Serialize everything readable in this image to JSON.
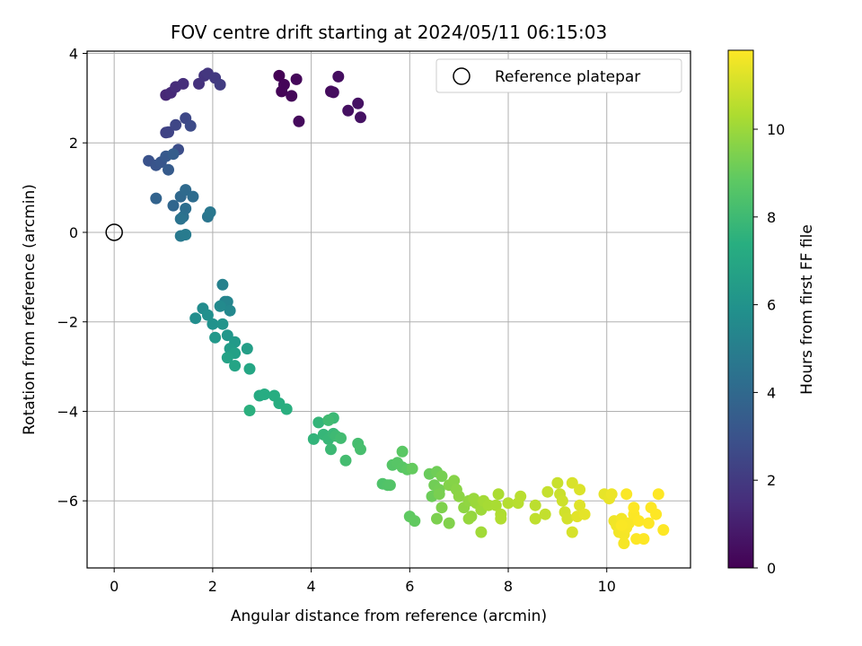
{
  "chart_data": {
    "type": "scatter",
    "title": "FOV centre drift starting at 2024/05/11 06:15:03",
    "xlabel": "Angular distance from reference (arcmin)",
    "ylabel": "Rotation from reference (arcmin)",
    "xlim": [
      -0.55,
      11.7
    ],
    "ylim": [
      -7.5,
      4.05
    ],
    "xticks": [
      0,
      2,
      4,
      6,
      8,
      10
    ],
    "yticks": [
      4,
      2,
      0,
      -2,
      -4,
      -6
    ],
    "xtick_labels": [
      "0",
      "2",
      "4",
      "6",
      "8",
      "10"
    ],
    "ytick_labels": [
      "4",
      "2",
      "0",
      "−2",
      "−4",
      "−6"
    ],
    "grid": true,
    "colormap": "viridis",
    "colorbar": {
      "label": "Hours from first FF file",
      "range": [
        0,
        11.8
      ],
      "ticks": [
        0,
        2,
        4,
        6,
        8,
        10
      ],
      "tick_labels": [
        "0",
        "2",
        "4",
        "6",
        "8",
        "10"
      ]
    },
    "reference": {
      "name": "Reference platepar",
      "x": 0,
      "y": 0
    },
    "legend": {
      "placement": "top-right",
      "entries": [
        "Reference platepar"
      ]
    },
    "points": [
      [
        3.35,
        3.5,
        0.05
      ],
      [
        3.4,
        3.15,
        0.1
      ],
      [
        3.45,
        3.3,
        0.15
      ],
      [
        3.6,
        3.05,
        0.2
      ],
      [
        3.7,
        3.42,
        0.25
      ],
      [
        3.75,
        2.48,
        0.3
      ],
      [
        4.4,
        3.15,
        0.35
      ],
      [
        4.45,
        3.13,
        0.4
      ],
      [
        4.55,
        3.48,
        0.45
      ],
      [
        4.75,
        2.72,
        0.5
      ],
      [
        4.95,
        2.88,
        0.55
      ],
      [
        5.0,
        2.57,
        0.6
      ],
      [
        1.05,
        3.07,
        1.3
      ],
      [
        1.15,
        3.12,
        1.4
      ],
      [
        1.25,
        3.25,
        1.5
      ],
      [
        1.4,
        3.32,
        1.6
      ],
      [
        1.72,
        3.32,
        1.7
      ],
      [
        1.83,
        3.5,
        1.8
      ],
      [
        1.9,
        3.55,
        1.9
      ],
      [
        2.05,
        3.45,
        2.0
      ],
      [
        2.15,
        3.3,
        2.1
      ],
      [
        1.05,
        2.23,
        2.3
      ],
      [
        1.1,
        2.24,
        2.4
      ],
      [
        1.25,
        2.4,
        2.5
      ],
      [
        1.45,
        2.55,
        2.6
      ],
      [
        1.55,
        2.38,
        2.7
      ],
      [
        1.3,
        1.85,
        2.8
      ],
      [
        0.7,
        1.6,
        3.0
      ],
      [
        0.85,
        1.5,
        3.1
      ],
      [
        0.95,
        1.57,
        3.2
      ],
      [
        1.05,
        1.7,
        3.3
      ],
      [
        1.1,
        1.4,
        3.4
      ],
      [
        1.2,
        1.75,
        3.5
      ],
      [
        0.85,
        0.76,
        3.8
      ],
      [
        1.2,
        0.6,
        3.9
      ],
      [
        1.35,
        0.8,
        4.0
      ],
      [
        1.45,
        0.95,
        4.1
      ],
      [
        1.6,
        0.8,
        4.2
      ],
      [
        1.45,
        0.53,
        4.3
      ],
      [
        1.4,
        0.35,
        4.4
      ],
      [
        1.35,
        0.3,
        4.5
      ],
      [
        1.9,
        0.35,
        4.6
      ],
      [
        1.95,
        0.45,
        4.7
      ],
      [
        1.35,
        -0.08,
        4.8
      ],
      [
        1.45,
        -0.05,
        4.9
      ],
      [
        2.2,
        -1.17,
        5.2
      ],
      [
        2.25,
        -1.55,
        5.3
      ],
      [
        2.3,
        -1.55,
        5.4
      ],
      [
        2.35,
        -1.75,
        5.5
      ],
      [
        2.15,
        -1.65,
        5.6
      ],
      [
        1.8,
        -1.7,
        5.7
      ],
      [
        1.65,
        -1.92,
        5.8
      ],
      [
        1.9,
        -1.85,
        5.9
      ],
      [
        2.0,
        -2.05,
        6.0
      ],
      [
        2.2,
        -2.05,
        6.1
      ],
      [
        2.3,
        -2.3,
        6.2
      ],
      [
        2.05,
        -2.35,
        6.3
      ],
      [
        2.45,
        -2.45,
        6.4
      ],
      [
        2.35,
        -2.6,
        6.5
      ],
      [
        2.7,
        -2.6,
        6.6
      ],
      [
        2.45,
        -2.7,
        6.7
      ],
      [
        2.3,
        -2.8,
        6.8
      ],
      [
        2.45,
        -2.98,
        6.9
      ],
      [
        2.75,
        -3.05,
        7.0
      ],
      [
        2.95,
        -3.65,
        7.2
      ],
      [
        3.05,
        -3.62,
        7.3
      ],
      [
        3.25,
        -3.65,
        7.35
      ],
      [
        3.35,
        -3.82,
        7.4
      ],
      [
        3.5,
        -3.95,
        7.45
      ],
      [
        2.75,
        -3.98,
        7.5
      ],
      [
        4.05,
        -4.62,
        7.7
      ],
      [
        4.15,
        -4.25,
        7.75
      ],
      [
        4.25,
        -4.52,
        7.8
      ],
      [
        4.35,
        -4.62,
        7.85
      ],
      [
        4.45,
        -4.5,
        7.9
      ],
      [
        4.45,
        -4.15,
        7.95
      ],
      [
        4.4,
        -4.85,
        8.0
      ],
      [
        4.5,
        -4.55,
        8.05
      ],
      [
        4.35,
        -4.2,
        8.1
      ],
      [
        4.6,
        -4.6,
        8.15
      ],
      [
        4.7,
        -5.1,
        8.2
      ],
      [
        4.95,
        -4.72,
        8.25
      ],
      [
        5.0,
        -4.85,
        8.3
      ],
      [
        5.45,
        -5.62,
        8.5
      ],
      [
        5.55,
        -5.65,
        8.55
      ],
      [
        5.6,
        -5.65,
        8.6
      ],
      [
        5.65,
        -5.2,
        8.65
      ],
      [
        5.75,
        -5.15,
        8.7
      ],
      [
        5.85,
        -5.25,
        8.75
      ],
      [
        5.85,
        -4.9,
        8.8
      ],
      [
        5.95,
        -5.3,
        8.85
      ],
      [
        6.0,
        -6.35,
        8.9
      ],
      [
        6.1,
        -6.45,
        8.95
      ],
      [
        6.05,
        -5.28,
        9.0
      ],
      [
        6.4,
        -5.4,
        9.1
      ],
      [
        6.45,
        -5.9,
        9.15
      ],
      [
        6.55,
        -5.35,
        9.2
      ],
      [
        6.5,
        -5.65,
        9.25
      ],
      [
        6.6,
        -5.75,
        9.3
      ],
      [
        6.65,
        -5.45,
        9.35
      ],
      [
        6.6,
        -5.85,
        9.4
      ],
      [
        6.55,
        -6.4,
        9.45
      ],
      [
        6.65,
        -6.15,
        9.5
      ],
      [
        6.8,
        -6.5,
        9.55
      ],
      [
        6.8,
        -5.65,
        9.6
      ],
      [
        6.9,
        -5.55,
        9.65
      ],
      [
        6.95,
        -5.75,
        9.7
      ],
      [
        7.0,
        -5.9,
        9.75
      ],
      [
        7.1,
        -6.15,
        9.8
      ],
      [
        7.2,
        -6.0,
        9.85
      ],
      [
        7.25,
        -6.35,
        9.9
      ],
      [
        7.2,
        -6.4,
        9.95
      ],
      [
        7.3,
        -5.95,
        10.0
      ],
      [
        7.35,
        -6.05,
        10.05
      ],
      [
        7.45,
        -6.2,
        10.1
      ],
      [
        7.45,
        -6.7,
        10.15
      ],
      [
        7.5,
        -6.0,
        10.2
      ],
      [
        7.6,
        -6.1,
        10.25
      ],
      [
        7.75,
        -6.1,
        10.3
      ],
      [
        7.8,
        -5.85,
        10.35
      ],
      [
        7.85,
        -6.3,
        10.4
      ],
      [
        7.85,
        -6.4,
        10.45
      ],
      [
        8.0,
        -6.05,
        10.5
      ],
      [
        8.2,
        -6.05,
        10.55
      ],
      [
        8.25,
        -5.9,
        10.6
      ],
      [
        8.55,
        -6.1,
        10.65
      ],
      [
        8.55,
        -6.4,
        10.7
      ],
      [
        8.75,
        -6.3,
        10.75
      ],
      [
        8.8,
        -5.8,
        10.8
      ],
      [
        9.0,
        -5.6,
        10.85
      ],
      [
        9.05,
        -5.85,
        10.9
      ],
      [
        9.1,
        -6.0,
        10.95
      ],
      [
        9.15,
        -6.25,
        11.0
      ],
      [
        9.2,
        -6.4,
        11.05
      ],
      [
        9.3,
        -6.7,
        11.1
      ],
      [
        9.3,
        -5.6,
        11.15
      ],
      [
        9.45,
        -5.75,
        11.2
      ],
      [
        9.45,
        -6.1,
        11.25
      ],
      [
        9.4,
        -6.35,
        11.3
      ],
      [
        9.55,
        -6.3,
        11.35
      ],
      [
        9.95,
        -5.85,
        11.4
      ],
      [
        10.05,
        -5.95,
        11.45
      ],
      [
        10.1,
        -5.85,
        11.5
      ],
      [
        10.15,
        -6.45,
        11.55
      ],
      [
        10.2,
        -6.55,
        11.58
      ],
      [
        10.25,
        -6.7,
        11.6
      ],
      [
        10.3,
        -6.4,
        11.62
      ],
      [
        10.35,
        -6.75,
        11.65
      ],
      [
        10.35,
        -6.95,
        11.68
      ],
      [
        10.4,
        -6.6,
        11.7
      ],
      [
        10.45,
        -6.5,
        11.72
      ],
      [
        10.4,
        -5.85,
        11.74
      ],
      [
        10.55,
        -6.3,
        11.76
      ],
      [
        10.6,
        -6.85,
        11.78
      ],
      [
        10.65,
        -6.45,
        11.8
      ],
      [
        10.75,
        -6.85,
        11.8
      ],
      [
        10.85,
        -6.5,
        11.8
      ],
      [
        10.9,
        -6.15,
        11.8
      ],
      [
        11.0,
        -6.3,
        11.8
      ],
      [
        11.05,
        -5.85,
        11.8
      ],
      [
        11.15,
        -6.65,
        11.8
      ],
      [
        10.55,
        -6.15,
        11.8
      ],
      [
        10.3,
        -6.55,
        11.75
      ]
    ]
  }
}
